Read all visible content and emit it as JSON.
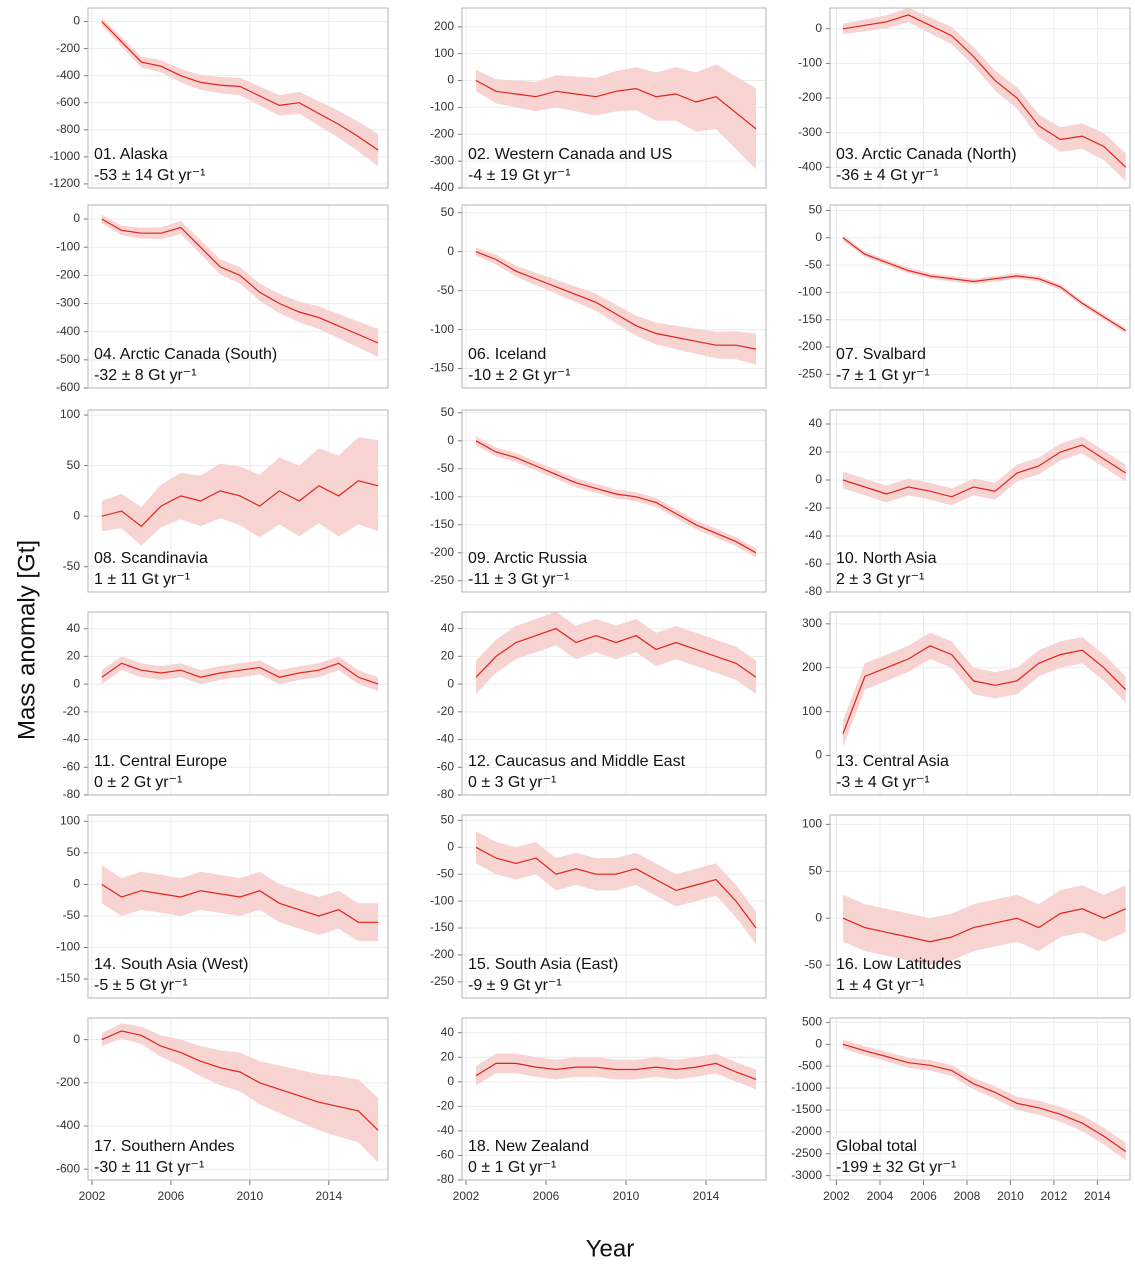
{
  "x_label": "Year",
  "y_label": "Mass anomaly [Gt]",
  "line_color": "#e3221c",
  "band_color": "#f7d3d1",
  "chart_data": [
    {
      "type": "line",
      "title": "01. Alaska",
      "subtitle": "-53 ± 14 Gt yr⁻¹",
      "x": [
        2002.5,
        2003.5,
        2004.5,
        2005.5,
        2006.5,
        2007.5,
        2008.5,
        2009.5,
        2010.5,
        2011.5,
        2012.5,
        2013.5,
        2014.5,
        2015.5,
        2016.5
      ],
      "values": [
        0,
        -150,
        -300,
        -330,
        -400,
        -450,
        -470,
        -480,
        -550,
        -620,
        -600,
        -680,
        -760,
        -850,
        -950
      ],
      "errors": [
        30,
        35,
        40,
        45,
        50,
        55,
        60,
        65,
        70,
        75,
        80,
        90,
        100,
        110,
        120
      ],
      "xlim": [
        2001.8,
        2017
      ],
      "xticks": [
        2002,
        2006,
        2010,
        2014
      ],
      "ylim": [
        -1230,
        100
      ],
      "yticks": [
        0,
        -200,
        -400,
        -600,
        -800,
        -1000,
        -1200
      ]
    },
    {
      "type": "line",
      "title": "02. Western Canada and US",
      "subtitle": "-4 ± 19 Gt yr⁻¹",
      "x": [
        2002.5,
        2003.5,
        2004.5,
        2005.5,
        2006.5,
        2007.5,
        2008.5,
        2009.5,
        2010.5,
        2011.5,
        2012.5,
        2013.5,
        2014.5,
        2015.5,
        2016.5
      ],
      "values": [
        0,
        -40,
        -50,
        -60,
        -40,
        -50,
        -60,
        -40,
        -30,
        -60,
        -50,
        -80,
        -60,
        -120,
        -180
      ],
      "errors": [
        40,
        45,
        50,
        55,
        60,
        65,
        70,
        75,
        80,
        90,
        100,
        110,
        120,
        135,
        150
      ],
      "xlim": [
        2001.8,
        2017
      ],
      "xticks": [
        2002,
        2006,
        2010,
        2014
      ],
      "ylim": [
        -400,
        270
      ],
      "yticks": [
        200,
        100,
        0,
        -100,
        -200,
        -300,
        -400
      ]
    },
    {
      "type": "line",
      "title": "03. Arctic Canada (North)",
      "subtitle": "-36 ± 4 Gt yr⁻¹",
      "x": [
        2002.3,
        2003.3,
        2004.3,
        2005.3,
        2006.3,
        2007.3,
        2008.3,
        2009.3,
        2010.3,
        2011.3,
        2012.3,
        2013.3,
        2014.3,
        2015.3
      ],
      "values": [
        0,
        10,
        20,
        40,
        10,
        -20,
        -80,
        -150,
        -200,
        -280,
        -320,
        -310,
        -340,
        -400
      ],
      "errors": [
        15,
        17,
        19,
        21,
        23,
        25,
        27,
        29,
        31,
        33,
        35,
        37,
        39,
        40
      ],
      "xlim": [
        2001.7,
        2015.5
      ],
      "xticks": [
        2002,
        2004,
        2006,
        2008,
        2010,
        2012,
        2014
      ],
      "ylim": [
        -460,
        60
      ],
      "yticks": [
        0,
        -100,
        -200,
        -300,
        -400
      ]
    },
    {
      "type": "line",
      "title": "04. Arctic Canada (South)",
      "subtitle": "-32 ± 8 Gt yr⁻¹",
      "x": [
        2002.5,
        2003.5,
        2004.5,
        2005.5,
        2006.5,
        2007.5,
        2008.5,
        2009.5,
        2010.5,
        2011.5,
        2012.5,
        2013.5,
        2014.5,
        2015.5,
        2016.5
      ],
      "values": [
        0,
        -40,
        -50,
        -50,
        -30,
        -100,
        -170,
        -200,
        -260,
        -300,
        -330,
        -350,
        -380,
        -410,
        -440
      ],
      "errors": [
        15,
        17,
        19,
        21,
        23,
        25,
        27,
        29,
        31,
        34,
        37,
        40,
        43,
        46,
        50
      ],
      "xlim": [
        2001.8,
        2017
      ],
      "xticks": [
        2002,
        2006,
        2010,
        2014
      ],
      "ylim": [
        -600,
        50
      ],
      "yticks": [
        0,
        -100,
        -200,
        -300,
        -400,
        -500,
        -600
      ]
    },
    {
      "type": "line",
      "title": "06. Iceland",
      "subtitle": "-10 ± 2 Gt yr⁻¹",
      "x": [
        2002.5,
        2003.5,
        2004.5,
        2005.5,
        2006.5,
        2007.5,
        2008.5,
        2009.5,
        2010.5,
        2011.5,
        2012.5,
        2013.5,
        2014.5,
        2015.5,
        2016.5
      ],
      "values": [
        0,
        -10,
        -25,
        -35,
        -45,
        -55,
        -65,
        -80,
        -95,
        -105,
        -110,
        -115,
        -120,
        -120,
        -125
      ],
      "errors": [
        5,
        6,
        7,
        8,
        9,
        10,
        11,
        12,
        13,
        14,
        15,
        16,
        17,
        18,
        20
      ],
      "xlim": [
        2001.8,
        2017
      ],
      "xticks": [
        2002,
        2006,
        2010,
        2014
      ],
      "ylim": [
        -175,
        60
      ],
      "yticks": [
        50,
        0,
        -50,
        -100,
        -150
      ]
    },
    {
      "type": "line",
      "title": "07. Svalbard",
      "subtitle": "-7 ± 1 Gt yr⁻¹",
      "x": [
        2002.3,
        2003.3,
        2004.3,
        2005.3,
        2006.3,
        2007.3,
        2008.3,
        2009.3,
        2010.3,
        2011.3,
        2012.3,
        2013.3,
        2014.3,
        2015.3
      ],
      "values": [
        0,
        -30,
        -45,
        -60,
        -70,
        -75,
        -80,
        -75,
        -70,
        -75,
        -90,
        -120,
        -145,
        -170
      ],
      "errors": [
        5,
        5,
        5,
        5,
        5,
        5,
        5,
        5,
        5,
        5,
        5,
        5,
        5,
        5
      ],
      "xlim": [
        2001.7,
        2015.5
      ],
      "xticks": [
        2002,
        2004,
        2006,
        2008,
        2010,
        2012,
        2014
      ],
      "ylim": [
        -275,
        60
      ],
      "yticks": [
        50,
        0,
        -50,
        -100,
        -150,
        -200,
        -250
      ]
    },
    {
      "type": "line",
      "title": "08. Scandinavia",
      "subtitle": "1 ± 11 Gt yr⁻¹",
      "x": [
        2002.5,
        2003.5,
        2004.5,
        2005.5,
        2006.5,
        2007.5,
        2008.5,
        2009.5,
        2010.5,
        2011.5,
        2012.5,
        2013.5,
        2014.5,
        2015.5,
        2016.5
      ],
      "values": [
        0,
        5,
        -10,
        10,
        20,
        15,
        25,
        20,
        10,
        25,
        15,
        30,
        20,
        35,
        30
      ],
      "errors": [
        15,
        17,
        19,
        21,
        23,
        25,
        27,
        29,
        31,
        33,
        35,
        37,
        40,
        43,
        45
      ],
      "xlim": [
        2001.8,
        2017
      ],
      "xticks": [
        2002,
        2006,
        2010,
        2014
      ],
      "ylim": [
        -75,
        105
      ],
      "yticks": [
        100,
        50,
        0,
        -50
      ]
    },
    {
      "type": "line",
      "title": "09. Arctic Russia",
      "subtitle": "-11 ± 3 Gt yr⁻¹",
      "x": [
        2002.5,
        2003.5,
        2004.5,
        2005.5,
        2006.5,
        2007.5,
        2008.5,
        2009.5,
        2010.5,
        2011.5,
        2012.5,
        2013.5,
        2014.5,
        2015.5,
        2016.5
      ],
      "values": [
        0,
        -20,
        -30,
        -45,
        -60,
        -75,
        -85,
        -95,
        -100,
        -110,
        -130,
        -150,
        -165,
        -180,
        -200
      ],
      "errors": [
        8,
        8,
        8,
        8,
        8,
        8,
        8,
        8,
        8,
        8,
        8,
        8,
        8,
        8,
        8
      ],
      "xlim": [
        2001.8,
        2017
      ],
      "xticks": [
        2002,
        2006,
        2010,
        2014
      ],
      "ylim": [
        -270,
        55
      ],
      "yticks": [
        50,
        0,
        -50,
        -100,
        -150,
        -200,
        -250
      ]
    },
    {
      "type": "line",
      "title": "10. North Asia",
      "subtitle": "2 ± 3 Gt yr⁻¹",
      "x": [
        2002.3,
        2003.3,
        2004.3,
        2005.3,
        2006.3,
        2007.3,
        2008.3,
        2009.3,
        2010.3,
        2011.3,
        2012.3,
        2013.3,
        2014.3,
        2015.3
      ],
      "values": [
        0,
        -5,
        -10,
        -5,
        -8,
        -12,
        -5,
        -8,
        5,
        10,
        20,
        25,
        15,
        5
      ],
      "errors": [
        6,
        6,
        6,
        6,
        6,
        6,
        6,
        6,
        6,
        6,
        6,
        6,
        6,
        6
      ],
      "xlim": [
        2001.7,
        2015.5
      ],
      "xticks": [
        2002,
        2004,
        2006,
        2008,
        2010,
        2012,
        2014
      ],
      "ylim": [
        -80,
        50
      ],
      "yticks": [
        40,
        20,
        0,
        -20,
        -40,
        -60,
        -80
      ]
    },
    {
      "type": "line",
      "title": "11. Central Europe",
      "subtitle": "0 ± 2 Gt yr⁻¹",
      "x": [
        2002.5,
        2003.5,
        2004.5,
        2005.5,
        2006.5,
        2007.5,
        2008.5,
        2009.5,
        2010.5,
        2011.5,
        2012.5,
        2013.5,
        2014.5,
        2015.5,
        2016.5
      ],
      "values": [
        5,
        15,
        10,
        8,
        10,
        5,
        8,
        10,
        12,
        5,
        8,
        10,
        15,
        5,
        0
      ],
      "errors": [
        5,
        5,
        5,
        5,
        5,
        5,
        5,
        5,
        5,
        5,
        5,
        5,
        5,
        5,
        5
      ],
      "xlim": [
        2001.8,
        2017
      ],
      "xticks": [
        2002,
        2006,
        2010,
        2014
      ],
      "ylim": [
        -80,
        52
      ],
      "yticks": [
        40,
        20,
        0,
        -20,
        -40,
        -60,
        -80
      ]
    },
    {
      "type": "line",
      "title": "12. Caucasus and Middle East",
      "subtitle": "0 ± 3 Gt yr⁻¹",
      "x": [
        2002.5,
        2003.5,
        2004.5,
        2005.5,
        2006.5,
        2007.5,
        2008.5,
        2009.5,
        2010.5,
        2011.5,
        2012.5,
        2013.5,
        2014.5,
        2015.5,
        2016.5
      ],
      "values": [
        5,
        20,
        30,
        35,
        40,
        30,
        35,
        30,
        35,
        25,
        30,
        25,
        20,
        15,
        5
      ],
      "errors": [
        12,
        12,
        12,
        12,
        12,
        12,
        12,
        12,
        12,
        12,
        12,
        12,
        12,
        12,
        12
      ],
      "xlim": [
        2001.8,
        2017
      ],
      "xticks": [
        2002,
        2006,
        2010,
        2014
      ],
      "ylim": [
        -80,
        52
      ],
      "yticks": [
        40,
        20,
        0,
        -20,
        -40,
        -60,
        -80
      ]
    },
    {
      "type": "line",
      "title": "13. Central Asia",
      "subtitle": "-3 ± 4 Gt yr⁻¹",
      "x": [
        2002.3,
        2003.3,
        2004.3,
        2005.3,
        2006.3,
        2007.3,
        2008.3,
        2009.3,
        2010.3,
        2011.3,
        2012.3,
        2013.3,
        2014.3,
        2015.3
      ],
      "values": [
        50,
        180,
        200,
        220,
        250,
        230,
        170,
        160,
        170,
        210,
        230,
        240,
        200,
        150
      ],
      "errors": [
        30,
        30,
        30,
        30,
        30,
        30,
        30,
        30,
        30,
        30,
        30,
        30,
        30,
        30
      ],
      "xlim": [
        2001.7,
        2015.5
      ],
      "xticks": [
        2002,
        2004,
        2006,
        2008,
        2010,
        2012,
        2014
      ],
      "ylim": [
        -90,
        327
      ],
      "yticks": [
        300,
        200,
        100,
        0
      ]
    },
    {
      "type": "line",
      "title": "14. South Asia (West)",
      "subtitle": "-5 ± 5 Gt yr⁻¹",
      "x": [
        2002.5,
        2003.5,
        2004.5,
        2005.5,
        2006.5,
        2007.5,
        2008.5,
        2009.5,
        2010.5,
        2011.5,
        2012.5,
        2013.5,
        2014.5,
        2015.5,
        2016.5
      ],
      "values": [
        0,
        -20,
        -10,
        -15,
        -20,
        -10,
        -15,
        -20,
        -10,
        -30,
        -40,
        -50,
        -40,
        -60,
        -60
      ],
      "errors": [
        30,
        30,
        30,
        30,
        30,
        30,
        30,
        30,
        30,
        30,
        30,
        30,
        30,
        30,
        30
      ],
      "xlim": [
        2001.8,
        2017
      ],
      "xticks": [
        2002,
        2006,
        2010,
        2014
      ],
      "ylim": [
        -180,
        110
      ],
      "yticks": [
        100,
        50,
        0,
        -50,
        -100,
        -150
      ]
    },
    {
      "type": "line",
      "title": "15. South Asia (East)",
      "subtitle": "-9 ± 9 Gt yr⁻¹",
      "x": [
        2002.5,
        2003.5,
        2004.5,
        2005.5,
        2006.5,
        2007.5,
        2008.5,
        2009.5,
        2010.5,
        2011.5,
        2012.5,
        2013.5,
        2014.5,
        2015.5,
        2016.5
      ],
      "values": [
        0,
        -20,
        -30,
        -20,
        -50,
        -40,
        -50,
        -50,
        -40,
        -60,
        -80,
        -70,
        -60,
        -100,
        -150
      ],
      "errors": [
        30,
        30,
        30,
        30,
        30,
        30,
        30,
        30,
        30,
        30,
        30,
        30,
        30,
        30,
        30
      ],
      "xlim": [
        2001.8,
        2017
      ],
      "xticks": [
        2002,
        2006,
        2010,
        2014
      ],
      "ylim": [
        -280,
        60
      ],
      "yticks": [
        50,
        0,
        -50,
        -100,
        -150,
        -200,
        -250
      ]
    },
    {
      "type": "line",
      "title": "16. Low Latitudes",
      "subtitle": "1 ± 4 Gt yr⁻¹",
      "x": [
        2002.3,
        2003.3,
        2004.3,
        2005.3,
        2006.3,
        2007.3,
        2008.3,
        2009.3,
        2010.3,
        2011.3,
        2012.3,
        2013.3,
        2014.3,
        2015.3
      ],
      "values": [
        0,
        -10,
        -15,
        -20,
        -25,
        -20,
        -10,
        -5,
        0,
        -10,
        5,
        10,
        0,
        10
      ],
      "errors": [
        25,
        25,
        25,
        25,
        25,
        25,
        25,
        25,
        25,
        25,
        25,
        25,
        25,
        25
      ],
      "xlim": [
        2001.7,
        2015.5
      ],
      "xticks": [
        2002,
        2004,
        2006,
        2008,
        2010,
        2012,
        2014
      ],
      "ylim": [
        -85,
        110
      ],
      "yticks": [
        100,
        50,
        0,
        -50
      ]
    },
    {
      "type": "line",
      "title": "17. Southern Andes",
      "subtitle": "-30 ± 11 Gt yr⁻¹",
      "x": [
        2002.5,
        2003.5,
        2004.5,
        2005.5,
        2006.5,
        2007.5,
        2008.5,
        2009.5,
        2010.5,
        2011.5,
        2012.5,
        2013.5,
        2014.5,
        2015.5,
        2016.5
      ],
      "values": [
        0,
        40,
        20,
        -30,
        -60,
        -100,
        -130,
        -150,
        -200,
        -230,
        -260,
        -290,
        -310,
        -330,
        -420
      ],
      "errors": [
        30,
        35,
        40,
        50,
        60,
        70,
        80,
        90,
        100,
        110,
        120,
        130,
        140,
        145,
        150
      ],
      "xlim": [
        2001.8,
        2017
      ],
      "xticks": [
        2002,
        2006,
        2010,
        2014
      ],
      "ylim": [
        -650,
        100
      ],
      "yticks": [
        0,
        -200,
        -400,
        -600
      ]
    },
    {
      "type": "line",
      "title": "18. New Zealand",
      "subtitle": "0 ± 1 Gt yr⁻¹",
      "x": [
        2002.5,
        2003.5,
        2004.5,
        2005.5,
        2006.5,
        2007.5,
        2008.5,
        2009.5,
        2010.5,
        2011.5,
        2012.5,
        2013.5,
        2014.5,
        2015.5,
        2016.5
      ],
      "values": [
        5,
        15,
        15,
        12,
        10,
        12,
        12,
        10,
        10,
        12,
        10,
        12,
        15,
        8,
        2
      ],
      "errors": [
        8,
        8,
        8,
        8,
        8,
        8,
        8,
        8,
        8,
        8,
        8,
        8,
        8,
        8,
        8
      ],
      "xlim": [
        2001.8,
        2017
      ],
      "xticks": [
        2002,
        2006,
        2010,
        2014
      ],
      "ylim": [
        -80,
        52
      ],
      "yticks": [
        40,
        20,
        0,
        -20,
        -40,
        -60,
        -80
      ]
    },
    {
      "type": "line",
      "title": "Global total",
      "subtitle": "-199 ± 32 Gt yr⁻¹",
      "x": [
        2002.3,
        2003.3,
        2004.3,
        2005.3,
        2006.3,
        2007.3,
        2008.3,
        2009.3,
        2010.3,
        2011.3,
        2012.3,
        2013.3,
        2014.3,
        2015.3
      ],
      "values": [
        0,
        -150,
        -280,
        -420,
        -480,
        -600,
        -900,
        -1100,
        -1350,
        -1450,
        -1600,
        -1800,
        -2100,
        -2450
      ],
      "errors": [
        100,
        105,
        110,
        115,
        120,
        125,
        130,
        140,
        150,
        160,
        170,
        180,
        190,
        200
      ],
      "xlim": [
        2001.7,
        2015.5
      ],
      "xticks": [
        2002,
        2004,
        2006,
        2008,
        2010,
        2012,
        2014
      ],
      "ylim": [
        -3100,
        600
      ],
      "yticks": [
        500,
        0,
        -500,
        -1000,
        -1500,
        -2000,
        -2500,
        -3000
      ]
    }
  ]
}
